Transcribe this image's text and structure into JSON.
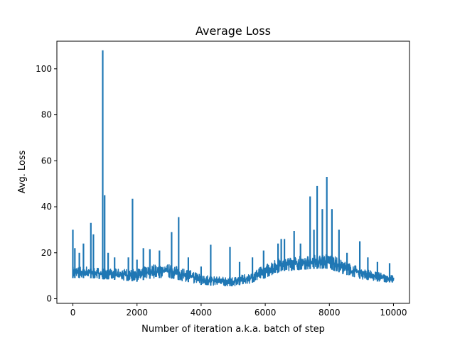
{
  "chart_data": {
    "type": "line",
    "title": "Average Loss",
    "xlabel": "Number of iteration a.k.a. batch of step",
    "ylabel": "Avg. Loss",
    "xlim": [
      -500,
      10500
    ],
    "ylim": [
      -2,
      112
    ],
    "xticks": [
      0,
      2000,
      4000,
      6000,
      8000,
      10000
    ],
    "yticks": [
      0,
      20,
      40,
      60,
      80,
      100
    ],
    "grid": false,
    "color": "#1f77b4",
    "series": [
      {
        "points_note_free": true,
        "baseline": [
          [
            0,
            9
          ],
          [
            500,
            9
          ],
          [
            1000,
            8.5
          ],
          [
            1500,
            8
          ],
          [
            2000,
            7.5
          ],
          [
            2500,
            9
          ],
          [
            3000,
            9
          ],
          [
            3500,
            7.5
          ],
          [
            4000,
            6
          ],
          [
            4500,
            5.5
          ],
          [
            5000,
            5.5
          ],
          [
            5500,
            6.5
          ],
          [
            6000,
            9
          ],
          [
            6500,
            12
          ],
          [
            7000,
            12.5
          ],
          [
            7500,
            13
          ],
          [
            8000,
            13
          ],
          [
            8500,
            10.5
          ],
          [
            9000,
            8.5
          ],
          [
            9500,
            7.5
          ],
          [
            10000,
            7
          ]
        ],
        "upper": [
          [
            0,
            14
          ],
          [
            500,
            14
          ],
          [
            1000,
            13
          ],
          [
            1500,
            13
          ],
          [
            2000,
            13
          ],
          [
            2500,
            15
          ],
          [
            3000,
            15
          ],
          [
            3500,
            13
          ],
          [
            4000,
            11
          ],
          [
            4500,
            9.5
          ],
          [
            5000,
            9.5
          ],
          [
            5500,
            11
          ],
          [
            6000,
            15
          ],
          [
            6500,
            18
          ],
          [
            7000,
            18.5
          ],
          [
            7500,
            19
          ],
          [
            8000,
            19.5
          ],
          [
            8500,
            16
          ],
          [
            9000,
            13.5
          ],
          [
            9500,
            11.5
          ],
          [
            10000,
            10
          ]
        ],
        "spikes": [
          [
            0,
            30
          ],
          [
            60,
            22
          ],
          [
            200,
            20
          ],
          [
            330,
            24
          ],
          [
            560,
            33
          ],
          [
            640,
            28
          ],
          [
            930,
            108
          ],
          [
            990,
            45
          ],
          [
            1100,
            20
          ],
          [
            1300,
            18
          ],
          [
            1730,
            18
          ],
          [
            1860,
            43.5
          ],
          [
            2000,
            17
          ],
          [
            2200,
            22
          ],
          [
            2400,
            21.5
          ],
          [
            2700,
            21
          ],
          [
            3080,
            29
          ],
          [
            3300,
            35.5
          ],
          [
            3600,
            18
          ],
          [
            4000,
            14
          ],
          [
            4300,
            23.5
          ],
          [
            4900,
            22.5
          ],
          [
            5200,
            16
          ],
          [
            5600,
            18
          ],
          [
            5950,
            21
          ],
          [
            6400,
            24
          ],
          [
            6500,
            26
          ],
          [
            6600,
            26
          ],
          [
            6900,
            29.5
          ],
          [
            7100,
            24
          ],
          [
            7400,
            44.5
          ],
          [
            7520,
            30
          ],
          [
            7620,
            49
          ],
          [
            7780,
            39
          ],
          [
            7920,
            53
          ],
          [
            8080,
            39
          ],
          [
            8300,
            30
          ],
          [
            8550,
            20
          ],
          [
            8950,
            25
          ],
          [
            9200,
            18
          ],
          [
            9500,
            16
          ],
          [
            9880,
            15.5
          ]
        ]
      }
    ]
  }
}
